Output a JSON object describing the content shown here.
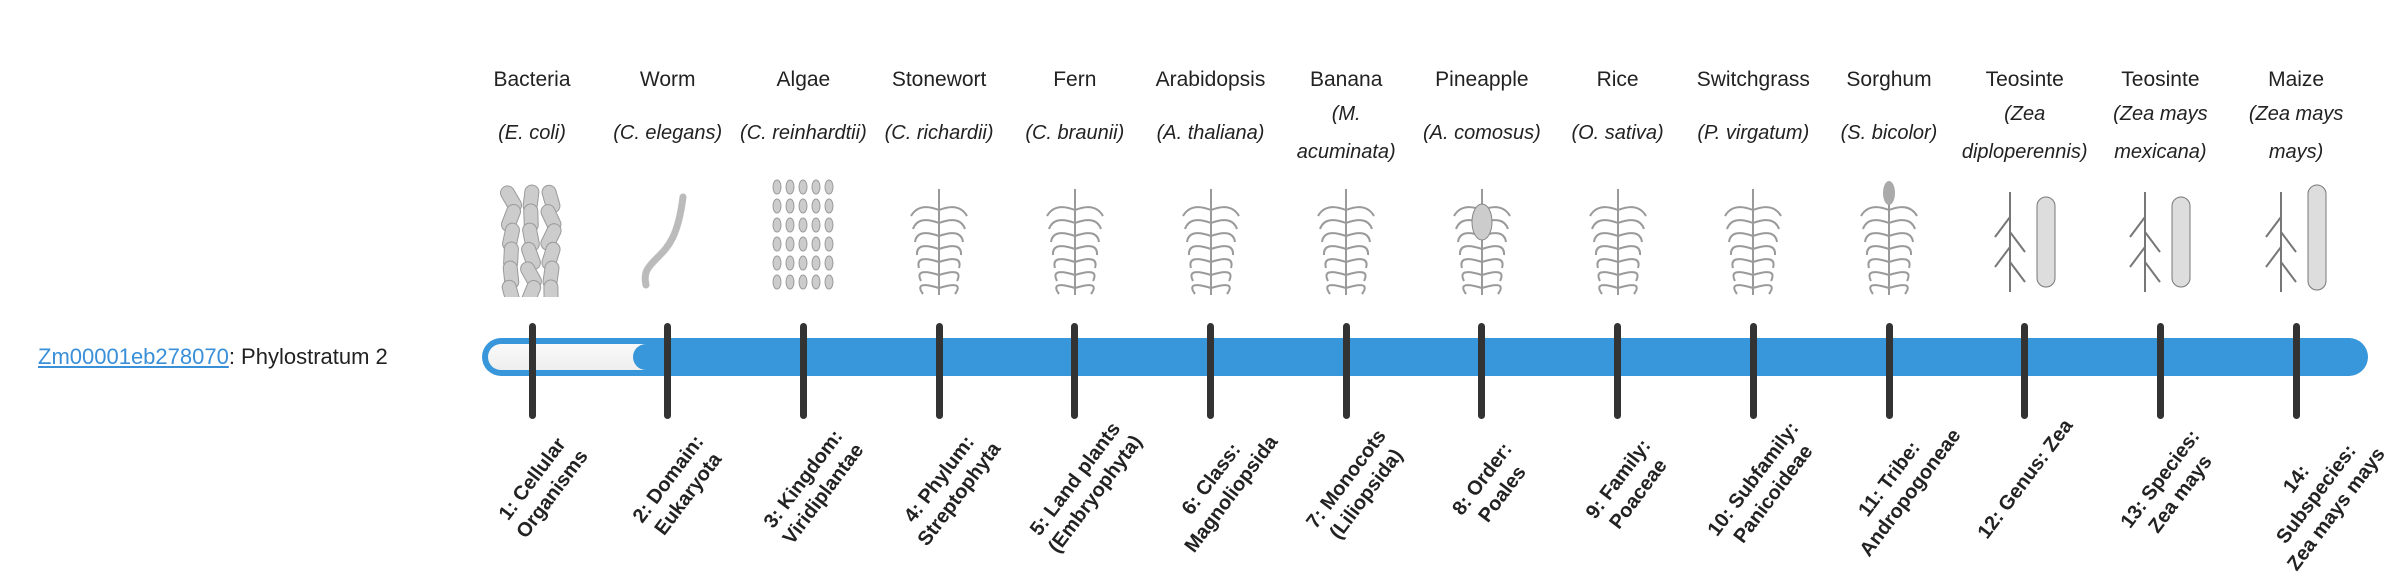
{
  "gene": {
    "id": "Zm00001eb278070",
    "suffix": ": Phylostratum 2"
  },
  "progress": {
    "value": 2,
    "max": 14,
    "fill_color": "#3897db",
    "empty_color": "#f4f4f4"
  },
  "columns": [
    {
      "common": "Bacteria",
      "species": "(E. coli)",
      "icon": "bacteria-icon"
    },
    {
      "common": "Worm",
      "species": "(C. elegans)",
      "icon": "worm-icon"
    },
    {
      "common": "Algae",
      "species": "(C. reinhardtii)",
      "icon": "algae-icon"
    },
    {
      "common": "Stonewort",
      "species": "(C. richardii)",
      "icon": "stonewort-icon"
    },
    {
      "common": "Fern",
      "species": "(C. braunii)",
      "icon": "fern-icon"
    },
    {
      "common": "Arabidopsis",
      "species": "(A. thaliana)",
      "icon": "arabidopsis-icon"
    },
    {
      "common": "Banana",
      "species": "(M. acuminata)",
      "icon": "banana-icon"
    },
    {
      "common": "Pineapple",
      "species": "(A. comosus)",
      "icon": "pineapple-icon"
    },
    {
      "common": "Rice",
      "species": "(O. sativa)",
      "icon": "rice-icon"
    },
    {
      "common": "Switchgrass",
      "species": "(P. virgatum)",
      "icon": "switchgrass-icon"
    },
    {
      "common": "Sorghum",
      "species": "(S. bicolor)",
      "icon": "sorghum-icon"
    },
    {
      "common": "Teosinte",
      "species": "(Zea diploperennis)",
      "icon": "teosinte-icon"
    },
    {
      "common": "Teosinte",
      "species": "(Zea mays mexicana)",
      "icon": "teosinte-icon"
    },
    {
      "common": "Maize",
      "species": "(Zea mays mays)",
      "icon": "maize-icon"
    }
  ],
  "strata": [
    "1: Cellular Organisms",
    "2: Domain: Eukaryota",
    "3: Kingdom: Viridiplantae",
    "4: Phylum: Streptophyta",
    "5: Land plants (Embryophyta)",
    "6: Class: Magnoliopsida",
    "7: Monocots (Liliopsida)",
    "8: Order: Poales",
    "9: Family: Poaceae",
    "10: Subfamily: Panicoideae",
    "11: Tribe: Andropogoneae",
    "12: Genus: Zea",
    "13: Species: Zea mays",
    "14: Subspecies: Zea mays mays"
  ]
}
